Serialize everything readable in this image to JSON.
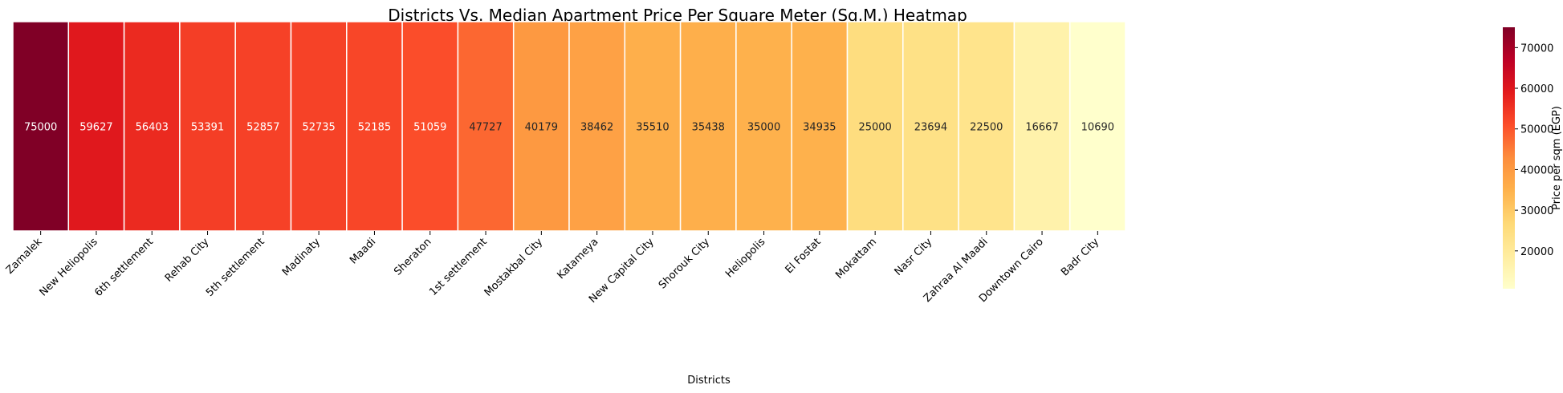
{
  "chart_data": {
    "type": "heatmap",
    "title": "Districts Vs. Median Apartment Price Per Square Meter (Sq.M.) Heatmap",
    "xlabel": "Districts",
    "ylabel": "",
    "colorbar_label": "Price per sqm (EGP)",
    "colorbar_ticks": [
      20000,
      30000,
      40000,
      50000,
      60000,
      70000
    ],
    "colorbar_range": [
      10690,
      75000
    ],
    "colormap": "YlOrRd",
    "categories": [
      "Zamalek",
      "New Heliopolis",
      "6th settlement",
      "Rehab City",
      "5th settlement",
      "Madinaty",
      "Maadi",
      "Sheraton",
      "1st settlement",
      "Mostakbal City",
      "Katameya",
      "New Capital City",
      "Shorouk City",
      "Heliopolis",
      "El Fostat",
      "Mokattam",
      "Nasr City",
      "Zahraa Al Maadi",
      "Downtown Cairo",
      "Badr City"
    ],
    "values": [
      75000,
      59627,
      56403,
      53391,
      52857,
      52735,
      52185,
      51059,
      47727,
      40179,
      38462,
      35510,
      35438,
      35000,
      34935,
      25000,
      23694,
      22500,
      16667,
      10690
    ],
    "grid": false,
    "legend": "colorbar-right"
  }
}
